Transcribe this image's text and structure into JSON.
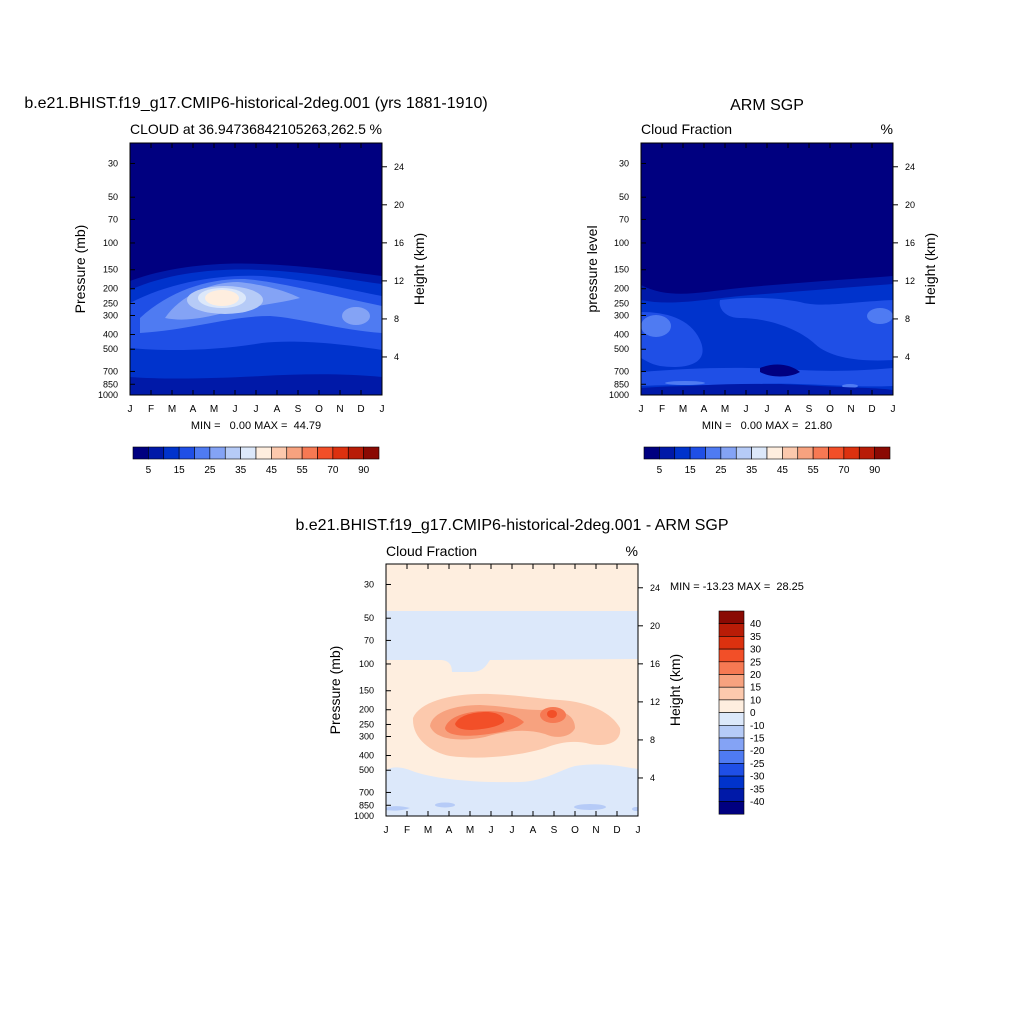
{
  "palette": {
    "cb_fill": [
      "#000080",
      "#0019a8",
      "#0033cc",
      "#1f4fe6",
      "#4f7bf2",
      "#84a3f5",
      "#b6cbf7",
      "#dce8fa",
      "#feeedf",
      "#fcc9ad",
      "#f7a27f",
      "#f67953",
      "#f24f28",
      "#dc310f",
      "#b81c07",
      "#8a0a03"
    ],
    "diff_fill": [
      "#000080",
      "#0019a8",
      "#0033cc",
      "#1f4fe6",
      "#4f7bf2",
      "#84a3f5",
      "#b6cbf7",
      "#dce8fa",
      "#feeedf",
      "#fcc9ad",
      "#f7a27f",
      "#f67953",
      "#f24f28",
      "#dc310f",
      "#b81c07",
      "#8a0a03"
    ]
  },
  "chart_data": [
    {
      "id": "model",
      "type": "heatmap",
      "title": "b.e21.BHIST.f19_g17.CMIP6-historical-2deg.001 (yrs 1881-1910)",
      "left_label": "CLOUD at 36.94736842105263,262.5",
      "right_label": "%",
      "ylabel": "Pressure (mb)",
      "ylabel_right": "Height (km)",
      "x_ticks": [
        "J",
        "F",
        "M",
        "A",
        "M",
        "J",
        "J",
        "A",
        "S",
        "O",
        "N",
        "D",
        "J"
      ],
      "y_ticks": [
        "30",
        "50",
        "70",
        "100",
        "150",
        "200",
        "250",
        "300",
        "400",
        "500",
        "700",
        "850",
        "1000"
      ],
      "y_ticks_right": [
        "24",
        "20",
        "16",
        "12",
        "8",
        "4"
      ],
      "stats": "MIN =   0.00 MAX =  44.79",
      "colorbar_labels": [
        "5",
        "15",
        "25",
        "35",
        "45",
        "55",
        "70",
        "90"
      ],
      "max_value": 44.79,
      "min_value": 0.0,
      "peak_month": "May",
      "peak_pressure_mb": 250
    },
    {
      "id": "obs",
      "type": "heatmap",
      "title": "ARM SGP",
      "left_label": "Cloud Fraction",
      "right_label": "%",
      "ylabel": "pressure level",
      "ylabel_right": "Height (km)",
      "x_ticks": [
        "J",
        "F",
        "M",
        "A",
        "M",
        "J",
        "J",
        "A",
        "S",
        "O",
        "N",
        "D",
        "J"
      ],
      "y_ticks": [
        "30",
        "50",
        "70",
        "100",
        "150",
        "200",
        "250",
        "300",
        "400",
        "500",
        "700",
        "850",
        "1000"
      ],
      "y_ticks_right": [
        "24",
        "20",
        "16",
        "12",
        "8",
        "4"
      ],
      "stats": "MIN =   0.00 MAX =  21.80",
      "colorbar_labels": [
        "5",
        "15",
        "25",
        "35",
        "45",
        "55",
        "70",
        "90"
      ],
      "max_value": 21.8,
      "min_value": 0.0
    },
    {
      "id": "diff",
      "type": "heatmap",
      "title": "b.e21.BHIST.f19_g17.CMIP6-historical-2deg.001 - ARM SGP",
      "left_label": "Cloud Fraction",
      "right_label": "%",
      "ylabel": "Pressure (mb)",
      "ylabel_right": "Height (km)",
      "x_ticks": [
        "J",
        "F",
        "M",
        "A",
        "M",
        "J",
        "J",
        "A",
        "S",
        "O",
        "N",
        "D",
        "J"
      ],
      "y_ticks": [
        "30",
        "50",
        "70",
        "100",
        "150",
        "200",
        "250",
        "300",
        "400",
        "500",
        "700",
        "850",
        "1000"
      ],
      "y_ticks_right": [
        "24",
        "20",
        "16",
        "12",
        "8",
        "4"
      ],
      "stats": "MIN = -13.23 MAX =  28.25",
      "colorbar_labels": [
        "40",
        "35",
        "30",
        "25",
        "20",
        "15",
        "10",
        "0",
        "-10",
        "-15",
        "-20",
        "-25",
        "-30",
        "-35",
        "-40"
      ],
      "max_value": 28.25,
      "min_value": -13.23
    }
  ]
}
